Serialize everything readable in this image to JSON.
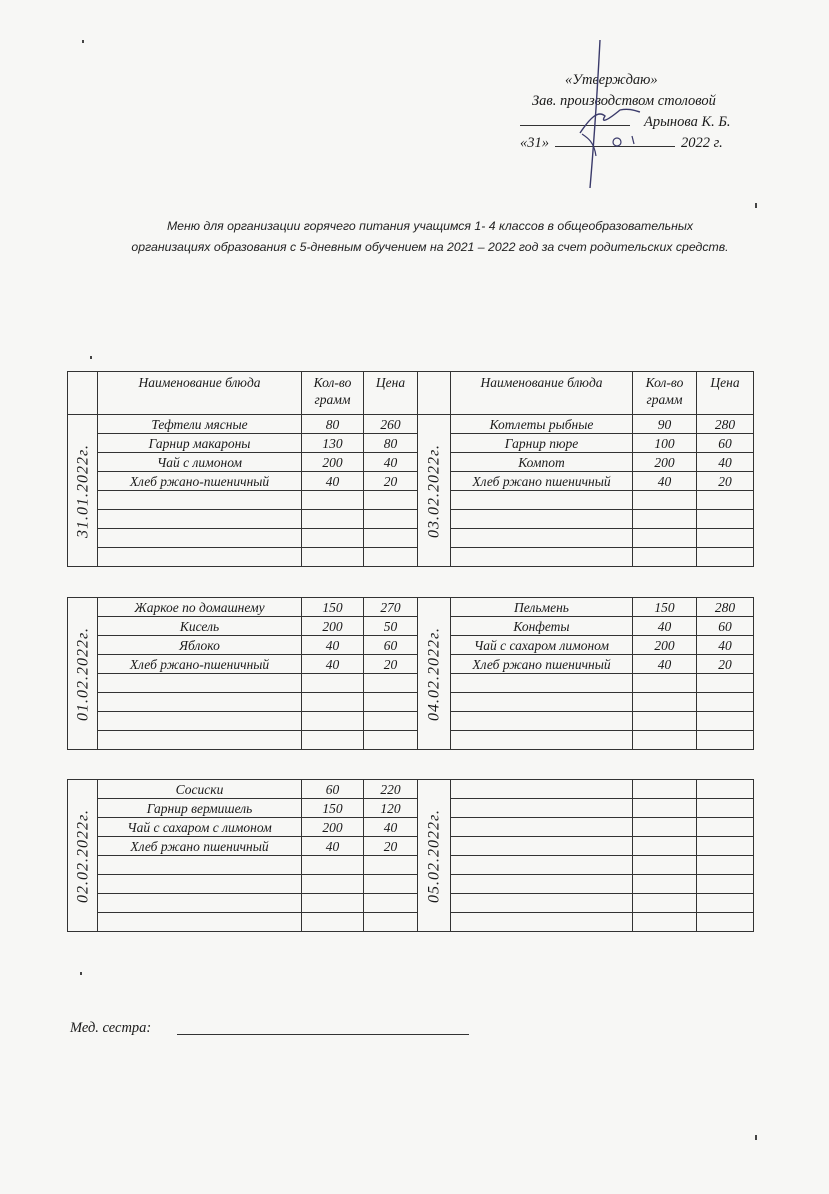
{
  "approval": {
    "title": "«Утверждаю»",
    "position": "Зав. производством столовой",
    "name": "Арынова К. Б.",
    "day": "«31»",
    "year": "2022 г.",
    "handwritten_month": "01"
  },
  "heading": {
    "line1": "Меню для организации горячего питания учащимся 1- 4 классов в общеобразовательных",
    "line2": "организациях образования  с 5-дневным обучением на 2021 – 2022  год за счет родительских средств."
  },
  "columns": {
    "name": "Наименование блюда",
    "qty": "Кол-во грамм",
    "price": "Цена"
  },
  "tables": [
    {
      "left": {
        "date": "31.01.2022г.",
        "items": [
          {
            "name": "Тефтели мясные",
            "qty": "80",
            "price": "260"
          },
          {
            "name": "Гарнир макароны",
            "qty": "130",
            "price": "80"
          },
          {
            "name": "Чай с лимоном",
            "qty": "200",
            "price": "40"
          },
          {
            "name": "Хлеб ржано-пшеничный",
            "qty": "40",
            "price": "20"
          }
        ]
      },
      "right": {
        "date": "03.02.2022г.",
        "items": [
          {
            "name": "Котлеты рыбные",
            "qty": "90",
            "price": "280"
          },
          {
            "name": "Гарнир пюре",
            "qty": "100",
            "price": "60"
          },
          {
            "name": "Компот",
            "qty": "200",
            "price": "40"
          },
          {
            "name": "Хлеб ржано пшеничный",
            "qty": "40",
            "price": "20"
          }
        ]
      }
    },
    {
      "left": {
        "date": "01.02.2022г.",
        "items": [
          {
            "name": "Жаркое по домашнему",
            "qty": "150",
            "price": "270"
          },
          {
            "name": "Кисель",
            "qty": "200",
            "price": "50"
          },
          {
            "name": "Яблоко",
            "qty": "40",
            "price": "60"
          },
          {
            "name": "Хлеб ржано-пшеничный",
            "qty": "40",
            "price": "20"
          }
        ]
      },
      "right": {
        "date": "04.02.2022г.",
        "items": [
          {
            "name": "Пельмень",
            "qty": "150",
            "price": "280"
          },
          {
            "name": "Конфеты",
            "qty": "40",
            "price": "60"
          },
          {
            "name": "Чай с сахаром лимоном",
            "qty": "200",
            "price": "40"
          },
          {
            "name": "Хлеб ржано пшеничный",
            "qty": "40",
            "price": "20"
          }
        ]
      }
    },
    {
      "left": {
        "date": "02.02.2022г.",
        "items": [
          {
            "name": "Сосиски",
            "qty": "60",
            "price": "220"
          },
          {
            "name": "Гарнир вермишель",
            "qty": "150",
            "price": "120"
          },
          {
            "name": "Чай с сахаром с лимоном",
            "qty": "200",
            "price": "40"
          },
          {
            "name": "Хлеб ржано пшеничный",
            "qty": "40",
            "price": "20"
          }
        ]
      },
      "right": {
        "date": "05.02.2022г.",
        "items": []
      }
    }
  ],
  "footer": {
    "nurse_label": "Мед. сестра:"
  }
}
